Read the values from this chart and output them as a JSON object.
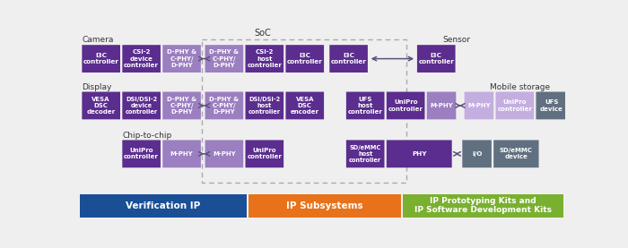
{
  "bg_color": "#f0eff0",
  "dark_purple": "#5b2d8e",
  "mid_purple": "#9b7fc0",
  "light_purple": "#c4aee0",
  "dark_gray": "#607080",
  "mid_gray": "#8090a0",
  "bottom_blue": "#1a4f96",
  "bottom_orange": "#e8721a",
  "bottom_green": "#7ab030",
  "white": "#ffffff",
  "arrow_color": "#555577",
  "label_color": "#333333",
  "soc_border": "#aaaaaa",
  "soc_label": "SoC",
  "camera_label": "Camera",
  "display_label": "Display",
  "chip_label": "Chip-to-chip",
  "sensor_label": "Sensor",
  "mobile_label": "Mobile storage",
  "bottom_labels": [
    "Verification IP",
    "IP Subsystems",
    "IP Prototyping Kits and\nIP Software Development Kits"
  ]
}
